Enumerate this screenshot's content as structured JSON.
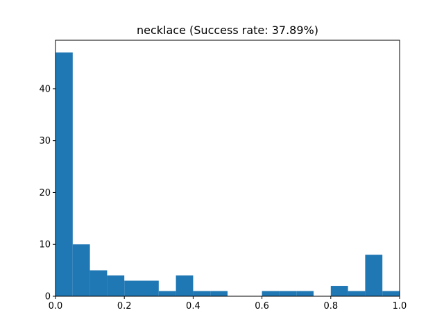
{
  "chart_data": {
    "type": "bar",
    "title": "necklace (Success rate: 37.89%)",
    "xlabel": "",
    "ylabel": "",
    "bin_edges": [
      0.0,
      0.05,
      0.1,
      0.15,
      0.2,
      0.25,
      0.3,
      0.35,
      0.4,
      0.45,
      0.5,
      0.55,
      0.6,
      0.65,
      0.7,
      0.75,
      0.8,
      0.85,
      0.9,
      0.95,
      1.0
    ],
    "values": [
      47,
      10,
      5,
      4,
      3,
      3,
      1,
      4,
      1,
      1,
      0,
      0,
      1,
      1,
      1,
      0,
      2,
      1,
      8,
      1
    ],
    "xlim": [
      0,
      1
    ],
    "ylim": [
      0,
      49.35
    ],
    "x_ticks": [
      {
        "value": 0.0,
        "label": "0.0"
      },
      {
        "value": 0.2,
        "label": "0.2"
      },
      {
        "value": 0.4,
        "label": "0.4"
      },
      {
        "value": 0.6,
        "label": "0.6"
      },
      {
        "value": 0.8,
        "label": "0.8"
      },
      {
        "value": 1.0,
        "label": "1.0"
      }
    ],
    "y_ticks": [
      {
        "value": 0,
        "label": "0"
      },
      {
        "value": 10,
        "label": "10"
      },
      {
        "value": 20,
        "label": "20"
      },
      {
        "value": 30,
        "label": "30"
      },
      {
        "value": 40,
        "label": "40"
      }
    ],
    "bar_color": "#1f77b4",
    "grid": false,
    "legend": "none"
  }
}
